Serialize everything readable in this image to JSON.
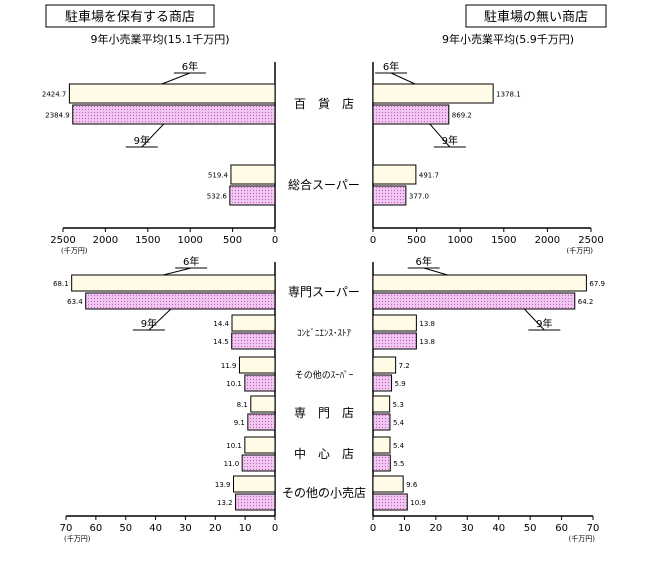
{
  "colors": {
    "year6_fill": "#fffbe6",
    "year9_fill": "#f2c8f2",
    "year9_dot": "#c060c0",
    "stroke": "#000000"
  },
  "chart_data": [
    {
      "type": "bar",
      "orientation": "horizontal",
      "direction": "leftward",
      "title": "駐車場を保有する商店",
      "subtitle": "9年小売業平均(15.1千万円)",
      "unit_label": "(千万円)",
      "xlim": [
        0,
        2500
      ],
      "ticks": [
        2500,
        2000,
        1500,
        1000,
        500,
        0
      ],
      "categories": [
        "百　貨　店",
        "総合スーパー"
      ],
      "series": [
        {
          "name": "6年",
          "values": [
            2424.7,
            519.4
          ],
          "labels": [
            "2424.7",
            "519.4"
          ]
        },
        {
          "name": "9年",
          "values": [
            2384.9,
            532.6
          ],
          "labels": [
            "2384.9",
            "532.6"
          ]
        }
      ]
    },
    {
      "type": "bar",
      "orientation": "horizontal",
      "direction": "rightward",
      "title": "駐車場の無い商店",
      "subtitle": "9年小売業平均(5.9千万円)",
      "unit_label": "(千万円)",
      "xlim": [
        0,
        2500
      ],
      "ticks": [
        0,
        500,
        1000,
        1500,
        2000,
        2500
      ],
      "categories": [
        "百　貨　店",
        "総合スーパー"
      ],
      "series": [
        {
          "name": "6年",
          "values": [
            1378.1,
            491.7
          ],
          "labels": [
            "1378.1",
            "491.7"
          ]
        },
        {
          "name": "9年",
          "values": [
            869.2,
            377.0
          ],
          "labels": [
            "869.2",
            "377.0"
          ]
        }
      ]
    },
    {
      "type": "bar",
      "orientation": "horizontal",
      "direction": "leftward",
      "unit_label": "(千万円)",
      "xlim": [
        0,
        70
      ],
      "ticks": [
        70,
        60,
        50,
        40,
        30,
        20,
        10,
        0
      ],
      "categories": [
        "専門スーパー",
        "ｺﾝﾋﾞﾆｴﾝｽ･ｽﾄｱ",
        "その他のｽｰﾊﾟｰ",
        "専　門　店",
        "中　心　店",
        "その他の小売店"
      ],
      "series": [
        {
          "name": "6年",
          "values": [
            68.1,
            14.4,
            11.9,
            8.1,
            10.1,
            13.9
          ],
          "labels": [
            "68.1",
            "14.4",
            "11.9",
            "8.1",
            "10.1",
            "13.9"
          ]
        },
        {
          "name": "9年",
          "values": [
            63.4,
            14.5,
            10.1,
            9.1,
            11.0,
            13.2
          ],
          "labels": [
            "63.4",
            "14.5",
            "10.1",
            "9.1",
            "11.0",
            "13.2"
          ]
        }
      ]
    },
    {
      "type": "bar",
      "orientation": "horizontal",
      "direction": "rightward",
      "unit_label": "(千万円)",
      "xlim": [
        0,
        70
      ],
      "ticks": [
        0,
        10,
        20,
        30,
        40,
        50,
        60,
        70
      ],
      "categories": [
        "専門スーパー",
        "ｺﾝﾋﾞﾆｴﾝｽ･ｽﾄｱ",
        "その他のｽｰﾊﾟｰ",
        "専　門　店",
        "中　心　店",
        "その他の小売店"
      ],
      "series": [
        {
          "name": "6年",
          "values": [
            67.9,
            13.8,
            7.2,
            5.3,
            5.4,
            9.6
          ],
          "labels": [
            "67.9",
            "13.8",
            "7.2",
            "5.3",
            "5.4",
            "9.6"
          ]
        },
        {
          "name": "9年",
          "values": [
            64.2,
            13.8,
            5.9,
            5.4,
            5.5,
            10.9
          ],
          "labels": [
            "64.2",
            "13.8",
            "5.9",
            "5.4",
            "5.5",
            "10.9"
          ]
        }
      ]
    }
  ]
}
